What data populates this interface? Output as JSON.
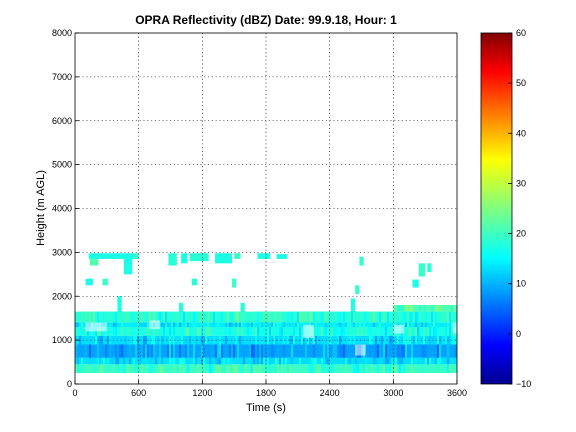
{
  "chart_data": {
    "type": "heatmap",
    "title": "OPRA Reflectivity (dBZ)  Date: 99.9.18, Hour: 1",
    "xlabel": "Time (s)",
    "ylabel": "Height (m AGL)",
    "xlim": [
      0,
      3600
    ],
    "ylim": [
      0,
      8000
    ],
    "xticks": [
      0,
      600,
      1200,
      1800,
      2400,
      3000,
      3600
    ],
    "yticks": [
      0,
      1000,
      2000,
      3000,
      4000,
      5000,
      6000,
      7000,
      8000
    ],
    "grid": true,
    "colorbar": {
      "colormap": "jet",
      "range": [
        -10,
        60
      ],
      "ticks": [
        -10,
        0,
        10,
        20,
        30,
        40,
        50,
        60
      ]
    },
    "layers": [
      {
        "y_from": 250,
        "y_to": 450,
        "dbz": 20,
        "x_from": 0,
        "x_to": 3600
      },
      {
        "y_from": 450,
        "y_to": 600,
        "dbz": 14,
        "x_from": 0,
        "x_to": 3600
      },
      {
        "y_from": 600,
        "y_to": 900,
        "dbz": 10,
        "x_from": 0,
        "x_to": 3600
      },
      {
        "y_from": 900,
        "y_to": 1100,
        "dbz": 14,
        "x_from": 0,
        "x_to": 3600
      },
      {
        "y_from": 1100,
        "y_to": 1300,
        "dbz": 18,
        "x_from": 0,
        "x_to": 3600
      },
      {
        "y_from": 1300,
        "y_to": 1400,
        "dbz": 15,
        "x_from": 0,
        "x_to": 3600
      },
      {
        "y_from": 1400,
        "y_to": 1650,
        "dbz": 19,
        "x_from": 0,
        "x_to": 3600
      },
      {
        "y_from": 1650,
        "y_to": 1800,
        "dbz": 22,
        "x_from": 3000,
        "x_to": 3600
      }
    ],
    "echo_patches": [
      {
        "x_from": 130,
        "x_to": 560,
        "y_from": 2850,
        "y_to": 2980,
        "dbz": 18
      },
      {
        "x_from": 140,
        "x_to": 220,
        "y_from": 2700,
        "y_to": 2850,
        "dbz": 22
      },
      {
        "x_from": 460,
        "x_to": 540,
        "y_from": 2500,
        "y_to": 2850,
        "dbz": 18
      },
      {
        "x_from": 560,
        "x_to": 600,
        "y_from": 2850,
        "y_to": 2980,
        "dbz": 20
      },
      {
        "x_from": 880,
        "x_to": 960,
        "y_from": 2700,
        "y_to": 2980,
        "dbz": 19
      },
      {
        "x_from": 1000,
        "x_to": 1060,
        "y_from": 2750,
        "y_to": 2980,
        "dbz": 18
      },
      {
        "x_from": 1080,
        "x_to": 1260,
        "y_from": 2800,
        "y_to": 2980,
        "dbz": 19
      },
      {
        "x_from": 1320,
        "x_to": 1480,
        "y_from": 2750,
        "y_to": 2980,
        "dbz": 18
      },
      {
        "x_from": 1500,
        "x_to": 1560,
        "y_from": 2850,
        "y_to": 2980,
        "dbz": 20
      },
      {
        "x_from": 1720,
        "x_to": 1840,
        "y_from": 2850,
        "y_to": 2980,
        "dbz": 18
      },
      {
        "x_from": 1900,
        "x_to": 2000,
        "y_from": 2850,
        "y_to": 2960,
        "dbz": 18
      },
      {
        "x_from": 2680,
        "x_to": 2720,
        "y_from": 2700,
        "y_to": 2900,
        "dbz": 20
      },
      {
        "x_from": 3240,
        "x_to": 3300,
        "y_from": 2450,
        "y_to": 2750,
        "dbz": 20
      },
      {
        "x_from": 3320,
        "x_to": 3360,
        "y_from": 2550,
        "y_to": 2750,
        "dbz": 19
      },
      {
        "x_from": 100,
        "x_to": 170,
        "y_from": 2250,
        "y_to": 2400,
        "dbz": 18
      },
      {
        "x_from": 260,
        "x_to": 310,
        "y_from": 2250,
        "y_to": 2400,
        "dbz": 20
      },
      {
        "x_from": 1100,
        "x_to": 1150,
        "y_from": 2250,
        "y_to": 2400,
        "dbz": 19
      },
      {
        "x_from": 1480,
        "x_to": 1520,
        "y_from": 2200,
        "y_to": 2400,
        "dbz": 20
      },
      {
        "x_from": 2640,
        "x_to": 2680,
        "y_from": 2050,
        "y_to": 2250,
        "dbz": 20
      },
      {
        "x_from": 3180,
        "x_to": 3240,
        "y_from": 2200,
        "y_to": 2380,
        "dbz": 18
      },
      {
        "x_from": 400,
        "x_to": 440,
        "y_from": 1650,
        "y_to": 2000,
        "dbz": 18
      },
      {
        "x_from": 980,
        "x_to": 1020,
        "y_from": 1650,
        "y_to": 1850,
        "dbz": 19
      },
      {
        "x_from": 1560,
        "x_to": 1600,
        "y_from": 1650,
        "y_to": 1850,
        "dbz": 19
      },
      {
        "x_from": 2600,
        "x_to": 2640,
        "y_from": 1650,
        "y_to": 1950,
        "dbz": 18
      }
    ],
    "gap_patches": [
      {
        "x_from": 100,
        "x_to": 300,
        "y_from": 1200,
        "y_to": 1400
      },
      {
        "x_from": 700,
        "x_to": 800,
        "y_from": 1250,
        "y_to": 1450
      },
      {
        "x_from": 2150,
        "x_to": 2250,
        "y_from": 1050,
        "y_to": 1350
      },
      {
        "x_from": 2640,
        "x_to": 2740,
        "y_from": 650,
        "y_to": 900
      },
      {
        "x_from": 3000,
        "x_to": 3100,
        "y_from": 1150,
        "y_to": 1350
      },
      {
        "x_from": 3560,
        "x_to": 3600,
        "y_from": 1150,
        "y_to": 1400
      }
    ]
  }
}
